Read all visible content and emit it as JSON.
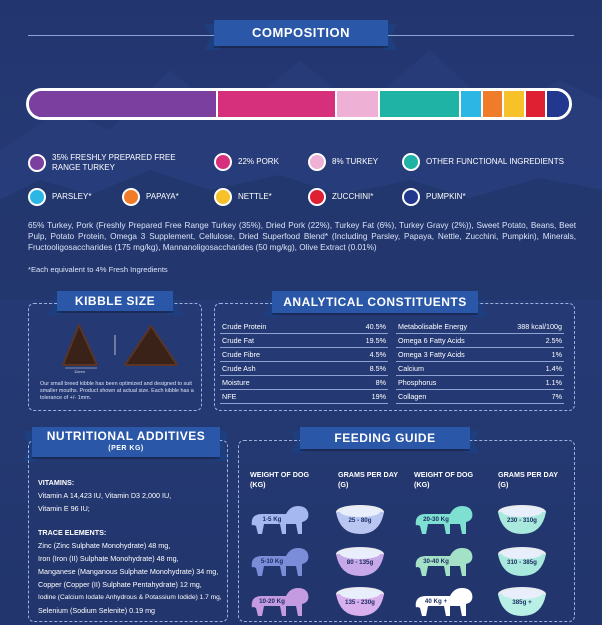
{
  "composition": {
    "title": "COMPOSITION",
    "segments": [
      {
        "label": "35% FRESHLY PREPARED FREE RANGE TURKEY",
        "color": "#7b3fa0",
        "share": 35
      },
      {
        "label": "22% PORK",
        "color": "#d6307c",
        "share": 22
      },
      {
        "label": "8% TURKEY",
        "color": "#eeb0d4",
        "share": 8
      },
      {
        "label": "OTHER FUNCTIONAL INGREDIENTS",
        "color": "#1fb3a6",
        "share": 15
      },
      {
        "label": "PARSLEY*",
        "color": "#2bb6e3",
        "share": 4
      },
      {
        "label": "PAPAYA*",
        "color": "#f07b28",
        "share": 4
      },
      {
        "label": "NETTLE*",
        "color": "#f7c12a",
        "share": 4
      },
      {
        "label": "ZUCCHINI*",
        "color": "#df2033",
        "share": 4
      },
      {
        "label": "PUMPKIN*",
        "color": "#22378e",
        "share": 4
      }
    ],
    "ingredients_text": "65% Turkey, Pork (Freshly Prepared Free Range Turkey (35%), Dried Pork (22%), Turkey Fat (6%), Turkey Gravy (2%)), Sweet Potato, Beans, Beet Pulp, Potato Protein, Omega 3 Supplement, Cellulose, Dried Superfood Blend* (Including Parsley, Papaya, Nettle, Zucchini, Pumpkin), Minerals, Fructooligosaccharides (175 mg/kg), Mannanoligosaccharides (50 mg/kg), Olive Extract (0.01%)",
    "footnote": "*Each equivalent to 4% Fresh Ingredients"
  },
  "kibble": {
    "title": "KIBBLE SIZE",
    "size_label": "11mm",
    "description": "Our small breed kibble has been optimized and designed to suit smaller mouths. Product shown at actual size. Each kibble has a tolerance of +/- 1mm."
  },
  "analytical": {
    "title": "ANALYTICAL CONSTITUENTS",
    "left": [
      {
        "name": "Crude Protein",
        "value": "40.5%"
      },
      {
        "name": "Crude Fat",
        "value": "19.5%"
      },
      {
        "name": "Crude Fibre",
        "value": "4.5%"
      },
      {
        "name": "Crude Ash",
        "value": "8.5%"
      },
      {
        "name": "Moisture",
        "value": "8%"
      },
      {
        "name": "NFE",
        "value": "19%"
      }
    ],
    "right": [
      {
        "name": "Metabolisable Energy",
        "value": "388 kcal/100g"
      },
      {
        "name": "Omega 6 Fatty Acids",
        "value": "2.5%"
      },
      {
        "name": "Omega 3 Fatty Acids",
        "value": "1%"
      },
      {
        "name": "Calcium",
        "value": "1.4%"
      },
      {
        "name": "Phosphorus",
        "value": "1.1%"
      },
      {
        "name": "Collagen",
        "value": "7%"
      }
    ]
  },
  "additives": {
    "title": "NUTRITIONAL ADDITIVES",
    "subtitle": "(PER KG)",
    "vitamins_heading": "VITAMINS:",
    "vitamins": [
      "Vitamin A 14,423 IU, Vitamin D3 2,000 IU,",
      "Vitamin E 96 IU;"
    ],
    "trace_heading": "TRACE ELEMENTS:",
    "trace": [
      "Zinc (Zinc Sulphate Monohydrate) 48 mg,",
      "Iron (Iron (II) Sulphate Monohydrate) 48 mg,",
      "Manganese (Manganous Sulphate Monohydrate) 34 mg,",
      "Copper (Copper (II) Sulphate Pentahydrate) 12 mg,",
      "Iodine (Calcium Iodate Anhydrous & Potassium Iodide) 1.7 mg,",
      "Selenium (Sodium Selenite) 0.19 mg"
    ]
  },
  "feeding": {
    "title": "FEEDING GUIDE",
    "headers": [
      "WEIGHT OF DOG (KG)",
      "GRAMS PER DAY (G)",
      "WEIGHT OF DOG (KG)",
      "GRAMS PER DAY (G)"
    ],
    "rows_left": [
      {
        "weight": "1-5 Kg",
        "grams": "25 - 80g"
      },
      {
        "weight": "5-10 Kg",
        "grams": "80 - 135g"
      },
      {
        "weight": "10-20 Kg",
        "grams": "135 - 230g"
      }
    ],
    "rows_right": [
      {
        "weight": "20-30 Kg",
        "grams": "230 - 310g"
      },
      {
        "weight": "30-40 Kg",
        "grams": "310 - 385g"
      },
      {
        "weight": "40 Kg +",
        "grams": "385g +"
      }
    ],
    "dog_colors": [
      "#a6b8f0",
      "#7b8cd8",
      "#c49be0",
      "#7de0d0",
      "#a4e2c8",
      "#ffffff"
    ],
    "bowl_colors": [
      "#b9c6f2",
      "#c7a8e8",
      "#d8b0ee",
      "#a9e8dc",
      "#a9e8dc",
      "#b9f0e6"
    ]
  }
}
